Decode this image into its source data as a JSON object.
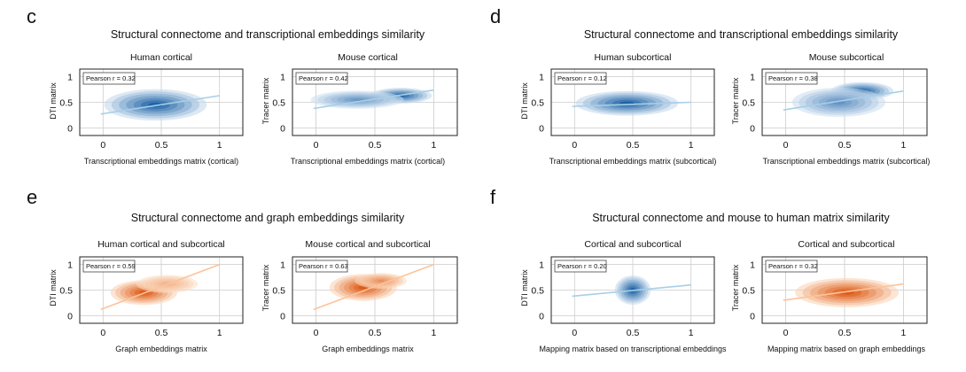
{
  "panels": [
    {
      "letter": "c",
      "title": "Structural connectome and transcriptional embeddings similarity",
      "charts": [
        {
          "subtitle": "Human cortical",
          "ylabel": "DTI matrix",
          "xlabel": "Transcriptional embeddings matrix (cortical)",
          "stat": "Pearson r = 0.32",
          "cmap": "blue"
        },
        {
          "subtitle": "Mouse cortical",
          "ylabel": "Tracer matrix",
          "xlabel": "Transcriptional embeddings matrix (cortical)",
          "stat": "Pearson r = 0.42",
          "cmap": "blue"
        }
      ]
    },
    {
      "letter": "d",
      "title": "Structural connectome and transcriptional embeddings similarity",
      "charts": [
        {
          "subtitle": "Human subcortical",
          "ylabel": "DTI matrix",
          "xlabel": "Transcriptional embeddings matrix (subcortical)",
          "stat": "Pearson r = 0.12",
          "cmap": "blue"
        },
        {
          "subtitle": "Mouse subcortical",
          "ylabel": "Tracer matrix",
          "xlabel": "Transcriptional embeddings matrix (subcortical)",
          "stat": "Pearson r = 0.38",
          "cmap": "blue"
        }
      ]
    },
    {
      "letter": "e",
      "title": "Structural connectome and graph embeddings similarity",
      "charts": [
        {
          "subtitle": "Human cortical and subcortical",
          "ylabel": "DTI matrix",
          "xlabel": "Graph embeddings matrix",
          "stat": "Pearson r = 0.59",
          "cmap": "orange"
        },
        {
          "subtitle": "Mouse cortical and subcortical",
          "ylabel": "Tracer matrix",
          "xlabel": "Graph embeddings matrix",
          "stat": "Pearson r = 0.63",
          "cmap": "orange"
        }
      ]
    },
    {
      "letter": "f",
      "title": "Structural connectome and mouse to human matrix similarity",
      "charts": [
        {
          "subtitle": "Cortical and subcortical",
          "ylabel": "DTI matrix",
          "xlabel": "Mapping matrix based on transcriptional embeddings",
          "stat": "Pearson r = 0.20",
          "cmap": "blue"
        },
        {
          "subtitle": "Cortical and subcortical",
          "ylabel": "Tracer matrix",
          "xlabel": "Mapping matrix based on graph embeddings",
          "stat": "Pearson r = 0.32",
          "cmap": "orange"
        }
      ]
    }
  ],
  "colors": {
    "blue_dark": "#08519c",
    "blue_light": "#deebf7",
    "blue_line": "#a6cfe8",
    "orange_dark": "#d94801",
    "orange_light": "#fee6ce",
    "orange_line": "#fdc39a",
    "grid": "#cccccc",
    "frame": "#222222"
  },
  "chart_data": [
    {
      "type": "heatmap",
      "subtitle": "Human cortical",
      "xlabel": "Transcriptional embeddings matrix (cortical)",
      "ylabel": "DTI matrix",
      "pearson_r": 0.32,
      "xticks": [
        0,
        0.5,
        1
      ],
      "yticks": [
        0,
        0.5,
        1
      ],
      "xlim": [
        -0.2,
        1.2
      ],
      "ylim": [
        -0.15,
        1.15
      ],
      "grid": true,
      "annotation": "Pearson r = 0.32",
      "annotation_placement": "top-left",
      "density": [
        {
          "x": 0.45,
          "y": 0.45,
          "sx": 0.2,
          "sy": 0.14,
          "w": 1
        }
      ],
      "fit_line": [
        [
          -0.02,
          0.27
        ],
        [
          1.0,
          0.63
        ]
      ]
    },
    {
      "type": "heatmap",
      "subtitle": "Mouse cortical",
      "xlabel": "Transcriptional embeddings matrix (cortical)",
      "ylabel": "Tracer matrix",
      "pearson_r": 0.42,
      "xticks": [
        0,
        0.5,
        1
      ],
      "yticks": [
        0,
        0.5,
        1
      ],
      "xlim": [
        -0.2,
        1.2
      ],
      "ylim": [
        -0.15,
        1.15
      ],
      "grid": true,
      "annotation": "Pearson r = 0.42",
      "annotation_placement": "top-left",
      "density": [
        {
          "x": 0.72,
          "y": 0.63,
          "sx": 0.12,
          "sy": 0.07,
          "w": 1
        },
        {
          "x": 0.35,
          "y": 0.55,
          "sx": 0.18,
          "sy": 0.08,
          "w": 0.6
        }
      ],
      "fit_line": [
        [
          -0.02,
          0.38
        ],
        [
          1.0,
          0.74
        ]
      ]
    },
    {
      "type": "heatmap",
      "subtitle": "Human subcortical",
      "xlabel": "Transcriptional embeddings matrix (subcortical)",
      "ylabel": "DTI matrix",
      "pearson_r": 0.12,
      "xticks": [
        0,
        0.5,
        1
      ],
      "yticks": [
        0,
        0.5,
        1
      ],
      "xlim": [
        -0.2,
        1.2
      ],
      "ylim": [
        -0.15,
        1.15
      ],
      "grid": true,
      "annotation": "Pearson r = 0.12",
      "annotation_placement": "top-left",
      "density": [
        {
          "x": 0.45,
          "y": 0.48,
          "sx": 0.2,
          "sy": 0.11,
          "w": 1
        }
      ],
      "fit_line": [
        [
          -0.02,
          0.42
        ],
        [
          1.0,
          0.5
        ]
      ]
    },
    {
      "type": "heatmap",
      "subtitle": "Mouse subcortical",
      "xlabel": "Transcriptional embeddings matrix (subcortical)",
      "ylabel": "Tracer matrix",
      "pearson_r": 0.38,
      "xticks": [
        0,
        0.5,
        1
      ],
      "yticks": [
        0,
        0.5,
        1
      ],
      "xlim": [
        -0.2,
        1.2
      ],
      "ylim": [
        -0.15,
        1.15
      ],
      "grid": true,
      "annotation": "Pearson r = 0.38",
      "annotation_placement": "top-left",
      "density": [
        {
          "x": 0.65,
          "y": 0.72,
          "sx": 0.12,
          "sy": 0.08,
          "w": 1
        },
        {
          "x": 0.45,
          "y": 0.5,
          "sx": 0.18,
          "sy": 0.13,
          "w": 0.65
        }
      ],
      "fit_line": [
        [
          -0.02,
          0.35
        ],
        [
          1.0,
          0.72
        ]
      ]
    },
    {
      "type": "heatmap",
      "subtitle": "Human cortical and subcortical",
      "xlabel": "Graph embeddings matrix",
      "ylabel": "DTI matrix",
      "pearson_r": 0.59,
      "xticks": [
        0,
        0.5,
        1
      ],
      "yticks": [
        0,
        0.5,
        1
      ],
      "xlim": [
        -0.2,
        1.2
      ],
      "ylim": [
        -0.15,
        1.15
      ],
      "grid": true,
      "annotation": "Pearson r = 0.59",
      "annotation_placement": "top-left",
      "density": [
        {
          "x": 0.35,
          "y": 0.45,
          "sx": 0.13,
          "sy": 0.11,
          "w": 1
        },
        {
          "x": 0.55,
          "y": 0.62,
          "sx": 0.12,
          "sy": 0.08,
          "w": 0.35
        }
      ],
      "fit_line": [
        [
          -0.02,
          0.12
        ],
        [
          1.0,
          1.0
        ]
      ]
    },
    {
      "type": "heatmap",
      "subtitle": "Mouse cortical and subcortical",
      "xlabel": "Graph embeddings matrix",
      "ylabel": "Tracer matrix",
      "pearson_r": 0.63,
      "xticks": [
        0,
        0.5,
        1
      ],
      "yticks": [
        0,
        0.5,
        1
      ],
      "xlim": [
        -0.2,
        1.2
      ],
      "ylim": [
        -0.15,
        1.15
      ],
      "grid": true,
      "annotation": "Pearson r = 0.63",
      "annotation_placement": "top-left",
      "density": [
        {
          "x": 0.4,
          "y": 0.55,
          "sx": 0.13,
          "sy": 0.12,
          "w": 1
        },
        {
          "x": 0.55,
          "y": 0.68,
          "sx": 0.1,
          "sy": 0.07,
          "w": 0.6
        }
      ],
      "fit_line": [
        [
          -0.02,
          0.12
        ],
        [
          1.0,
          1.0
        ]
      ]
    },
    {
      "type": "heatmap",
      "subtitle": "Cortical and subcortical",
      "xlabel": "Mapping matrix based on transcriptional embeddings",
      "ylabel": "DTI matrix",
      "pearson_r": 0.2,
      "xticks": [
        0,
        0.5,
        1
      ],
      "yticks": [
        0,
        0.5,
        1
      ],
      "xlim": [
        -0.2,
        1.2
      ],
      "ylim": [
        -0.15,
        1.15
      ],
      "grid": true,
      "annotation": "Pearson r = 0.20",
      "annotation_placement": "top-left",
      "density": [
        {
          "x": 0.5,
          "y": 0.5,
          "sx": 0.07,
          "sy": 0.13,
          "w": 1
        }
      ],
      "fit_line": [
        [
          -0.02,
          0.38
        ],
        [
          1.0,
          0.6
        ]
      ]
    },
    {
      "type": "heatmap",
      "subtitle": "Cortical and subcortical",
      "xlabel": "Mapping matrix based on graph embeddings",
      "ylabel": "Tracer matrix",
      "pearson_r": 0.32,
      "xticks": [
        0,
        0.5,
        1
      ],
      "yticks": [
        0,
        0.5,
        1
      ],
      "xlim": [
        -0.2,
        1.2
      ],
      "ylim": [
        -0.15,
        1.15
      ],
      "grid": true,
      "annotation": "Pearson r = 0.32",
      "annotation_placement": "top-left",
      "density": [
        {
          "x": 0.52,
          "y": 0.45,
          "sx": 0.2,
          "sy": 0.13,
          "w": 1
        }
      ],
      "fit_line": [
        [
          -0.02,
          0.3
        ],
        [
          1.0,
          0.62
        ]
      ]
    }
  ]
}
